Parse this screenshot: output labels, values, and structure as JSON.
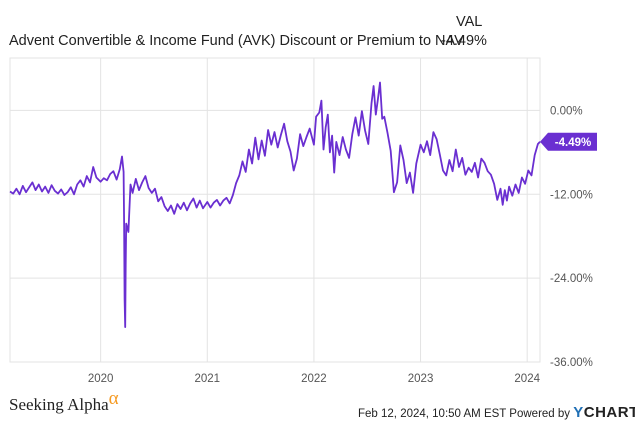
{
  "header": {
    "title": "Advent Convertible & Income Fund (AVK) Discount or Premium to NAV",
    "val_label": "VAL",
    "val_value": "-4.49%"
  },
  "footer": {
    "logo_text": "Seeking Alpha",
    "logo_symbol": "α",
    "timestamp": "Feb 12, 2024, 10:50 AM EST Powered by",
    "brand_prefix": "Y",
    "brand_suffix": "CHARTS"
  },
  "colors": {
    "line": "#6a2fd1",
    "grid": "#e3e3e3",
    "axis_text": "#555555",
    "badge": "#6a2fd1"
  },
  "chart_data": {
    "type": "line",
    "title": "Advent Convertible & Income Fund (AVK) Discount or Premium to NAV",
    "xlabel": "",
    "ylabel": "",
    "y_unit": "%",
    "ylim": [
      -36,
      7.5
    ],
    "xlim": [
      2019.15,
      2024.12
    ],
    "x_ticks": [
      {
        "value": 2020,
        "label": "2020"
      },
      {
        "value": 2021,
        "label": "2021"
      },
      {
        "value": 2022,
        "label": "2022"
      },
      {
        "value": 2023,
        "label": "2023"
      },
      {
        "value": 2024,
        "label": "2024"
      }
    ],
    "y_ticks": [
      {
        "value": 0,
        "label": "0.00%"
      },
      {
        "value": -12,
        "label": "-12.00%"
      },
      {
        "value": -24,
        "label": "-24.00%"
      },
      {
        "value": -36,
        "label": "-36.00%"
      }
    ],
    "grid": true,
    "last_value_label": "-4.49%",
    "series": [
      {
        "points": [
          [
            2019.15,
            -11.6
          ],
          [
            2019.18,
            -11.9
          ],
          [
            2019.21,
            -11.2
          ],
          [
            2019.24,
            -12.0
          ],
          [
            2019.27,
            -10.8
          ],
          [
            2019.3,
            -11.7
          ],
          [
            2019.33,
            -11.0
          ],
          [
            2019.36,
            -10.3
          ],
          [
            2019.39,
            -11.4
          ],
          [
            2019.42,
            -10.6
          ],
          [
            2019.45,
            -11.6
          ],
          [
            2019.48,
            -10.9
          ],
          [
            2019.51,
            -11.8
          ],
          [
            2019.54,
            -10.7
          ],
          [
            2019.57,
            -11.5
          ],
          [
            2019.6,
            -11.9
          ],
          [
            2019.63,
            -11.3
          ],
          [
            2019.66,
            -12.1
          ],
          [
            2019.69,
            -11.7
          ],
          [
            2019.72,
            -11.0
          ],
          [
            2019.75,
            -12.0
          ],
          [
            2019.78,
            -10.6
          ],
          [
            2019.81,
            -10.0
          ],
          [
            2019.84,
            -10.9
          ],
          [
            2019.87,
            -9.4
          ],
          [
            2019.9,
            -10.3
          ],
          [
            2019.93,
            -8.1
          ],
          [
            2019.96,
            -9.6
          ],
          [
            2020.0,
            -10.2
          ],
          [
            2020.03,
            -9.7
          ],
          [
            2020.06,
            -10.0
          ],
          [
            2020.09,
            -9.1
          ],
          [
            2020.12,
            -8.7
          ],
          [
            2020.15,
            -9.9
          ],
          [
            2020.18,
            -8.4
          ],
          [
            2020.2,
            -6.6
          ],
          [
            2020.215,
            -8.8
          ],
          [
            2020.22,
            -16.0
          ],
          [
            2020.225,
            -27.0
          ],
          [
            2020.23,
            -31.0
          ],
          [
            2020.235,
            -22.0
          ],
          [
            2020.24,
            -16.2
          ],
          [
            2020.26,
            -17.4
          ],
          [
            2020.28,
            -10.6
          ],
          [
            2020.3,
            -11.8
          ],
          [
            2020.33,
            -9.8
          ],
          [
            2020.36,
            -11.4
          ],
          [
            2020.39,
            -10.3
          ],
          [
            2020.42,
            -9.4
          ],
          [
            2020.45,
            -11.1
          ],
          [
            2020.48,
            -11.8
          ],
          [
            2020.51,
            -11.2
          ],
          [
            2020.54,
            -13.0
          ],
          [
            2020.57,
            -12.4
          ],
          [
            2020.6,
            -13.7
          ],
          [
            2020.63,
            -14.4
          ],
          [
            2020.66,
            -13.6
          ],
          [
            2020.69,
            -14.8
          ],
          [
            2020.72,
            -13.4
          ],
          [
            2020.75,
            -14.1
          ],
          [
            2020.78,
            -13.2
          ],
          [
            2020.81,
            -14.3
          ],
          [
            2020.84,
            -13.3
          ],
          [
            2020.87,
            -12.6
          ],
          [
            2020.9,
            -13.9
          ],
          [
            2020.93,
            -12.9
          ],
          [
            2020.96,
            -14.0
          ],
          [
            2021.0,
            -13.1
          ],
          [
            2021.03,
            -13.9
          ],
          [
            2021.06,
            -13.2
          ],
          [
            2021.09,
            -12.8
          ],
          [
            2021.12,
            -13.6
          ],
          [
            2021.15,
            -12.9
          ],
          [
            2021.18,
            -12.5
          ],
          [
            2021.21,
            -13.3
          ],
          [
            2021.24,
            -12.1
          ],
          [
            2021.27,
            -10.4
          ],
          [
            2021.3,
            -9.3
          ],
          [
            2021.33,
            -7.3
          ],
          [
            2021.36,
            -8.8
          ],
          [
            2021.39,
            -5.6
          ],
          [
            2021.42,
            -7.6
          ],
          [
            2021.45,
            -3.9
          ],
          [
            2021.48,
            -7.0
          ],
          [
            2021.51,
            -4.3
          ],
          [
            2021.54,
            -6.5
          ],
          [
            2021.57,
            -2.8
          ],
          [
            2021.6,
            -4.9
          ],
          [
            2021.63,
            -3.1
          ],
          [
            2021.66,
            -5.3
          ],
          [
            2021.69,
            -3.5
          ],
          [
            2021.72,
            -1.9
          ],
          [
            2021.75,
            -4.4
          ],
          [
            2021.78,
            -5.9
          ],
          [
            2021.81,
            -8.6
          ],
          [
            2021.84,
            -6.9
          ],
          [
            2021.87,
            -3.4
          ],
          [
            2021.9,
            -5.1
          ],
          [
            2021.93,
            -3.8
          ],
          [
            2021.96,
            -2.6
          ],
          [
            2022.0,
            -4.9
          ],
          [
            2022.02,
            -0.9
          ],
          [
            2022.05,
            -0.3
          ],
          [
            2022.07,
            1.4
          ],
          [
            2022.09,
            -5.6
          ],
          [
            2022.11,
            -2.4
          ],
          [
            2022.13,
            -0.6
          ],
          [
            2022.15,
            -6.0
          ],
          [
            2022.17,
            -3.6
          ],
          [
            2022.19,
            -8.9
          ],
          [
            2022.21,
            -4.5
          ],
          [
            2022.24,
            -6.4
          ],
          [
            2022.27,
            -3.8
          ],
          [
            2022.3,
            -5.6
          ],
          [
            2022.33,
            -6.8
          ],
          [
            2022.36,
            -3.4
          ],
          [
            2022.39,
            -1.0
          ],
          [
            2022.42,
            -3.6
          ],
          [
            2022.45,
            -0.1
          ],
          [
            2022.48,
            -2.9
          ],
          [
            2022.51,
            -4.8
          ],
          [
            2022.54,
            1.0
          ],
          [
            2022.56,
            3.5
          ],
          [
            2022.58,
            -0.6
          ],
          [
            2022.6,
            1.6
          ],
          [
            2022.62,
            4.0
          ],
          [
            2022.64,
            -1.2
          ],
          [
            2022.66,
            -0.9
          ],
          [
            2022.69,
            -3.2
          ],
          [
            2022.72,
            -5.8
          ],
          [
            2022.75,
            -11.7
          ],
          [
            2022.78,
            -10.3
          ],
          [
            2022.81,
            -5.0
          ],
          [
            2022.84,
            -7.1
          ],
          [
            2022.87,
            -10.4
          ],
          [
            2022.9,
            -8.9
          ],
          [
            2022.93,
            -11.8
          ],
          [
            2022.96,
            -7.6
          ],
          [
            2023.0,
            -4.9
          ],
          [
            2023.03,
            -6.0
          ],
          [
            2023.06,
            -4.4
          ],
          [
            2023.09,
            -6.4
          ],
          [
            2023.12,
            -3.1
          ],
          [
            2023.15,
            -4.1
          ],
          [
            2023.18,
            -6.3
          ],
          [
            2023.21,
            -8.6
          ],
          [
            2023.24,
            -9.3
          ],
          [
            2023.27,
            -7.1
          ],
          [
            2023.3,
            -8.7
          ],
          [
            2023.33,
            -5.6
          ],
          [
            2023.36,
            -8.1
          ],
          [
            2023.39,
            -6.8
          ],
          [
            2023.42,
            -9.2
          ],
          [
            2023.45,
            -8.2
          ],
          [
            2023.48,
            -8.8
          ],
          [
            2023.51,
            -7.5
          ],
          [
            2023.54,
            -9.6
          ],
          [
            2023.57,
            -6.9
          ],
          [
            2023.6,
            -7.5
          ],
          [
            2023.63,
            -8.7
          ],
          [
            2023.66,
            -9.2
          ],
          [
            2023.69,
            -10.5
          ],
          [
            2023.72,
            -12.8
          ],
          [
            2023.75,
            -11.2
          ],
          [
            2023.77,
            -13.5
          ],
          [
            2023.79,
            -11.4
          ],
          [
            2023.81,
            -12.9
          ],
          [
            2023.83,
            -10.9
          ],
          [
            2023.86,
            -12.2
          ],
          [
            2023.89,
            -10.6
          ],
          [
            2023.92,
            -11.8
          ],
          [
            2023.95,
            -9.6
          ],
          [
            2023.98,
            -10.5
          ],
          [
            2024.01,
            -8.6
          ],
          [
            2024.04,
            -9.3
          ],
          [
            2024.07,
            -6.4
          ],
          [
            2024.1,
            -4.8
          ],
          [
            2024.12,
            -4.49
          ]
        ]
      }
    ]
  }
}
